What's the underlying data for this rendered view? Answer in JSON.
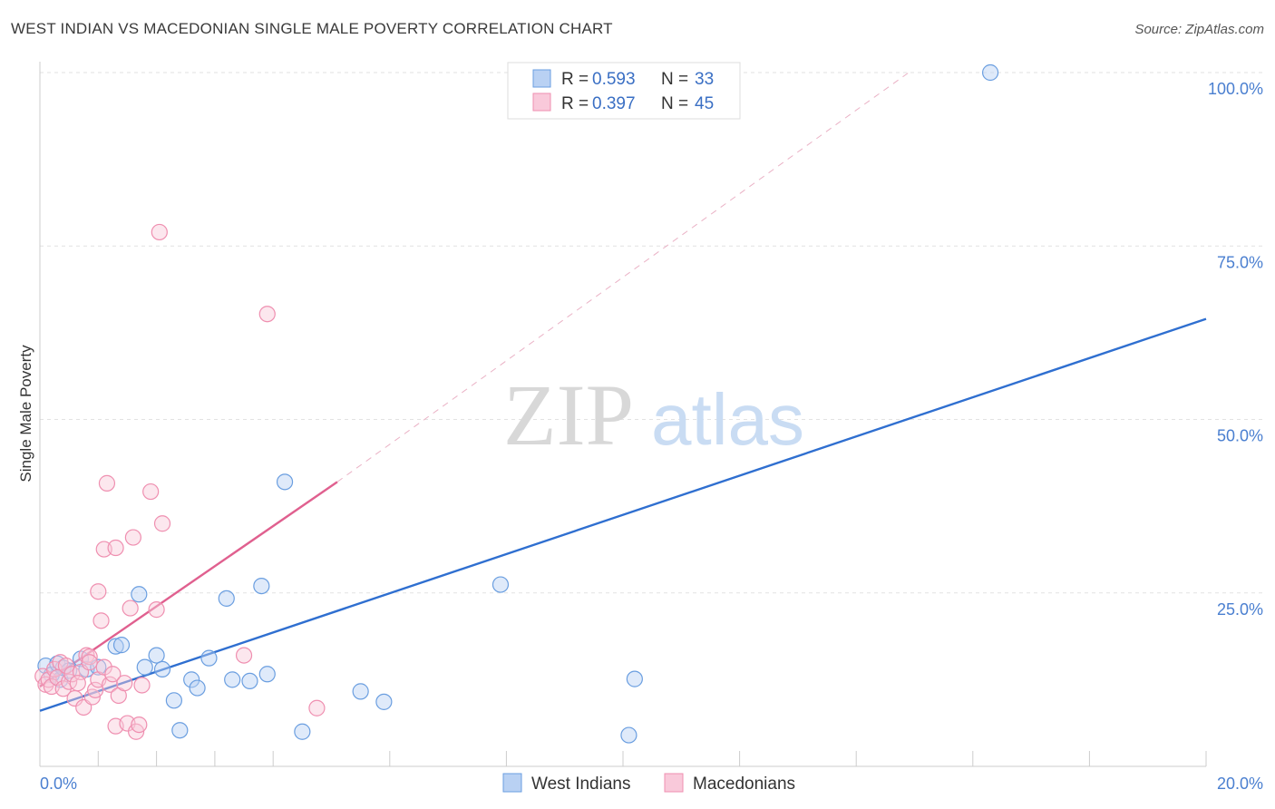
{
  "title": "WEST INDIAN VS MACEDONIAN SINGLE MALE POVERTY CORRELATION CHART",
  "source": "Source: ZipAtlas.com",
  "watermark": {
    "zip": "ZIP",
    "atlas": "atlas"
  },
  "colors": {
    "blue": "#6a9ee0",
    "blue_fill": "#b9d1f3",
    "blue_line": "#2f6fd0",
    "pink": "#ef8fb0",
    "pink_fill": "#f9c9da",
    "pink_line": "#e0608f",
    "axis_text": "#4a7fd0"
  },
  "legend": {
    "rows": [
      {
        "r_label": "R =",
        "r_value": "0.593",
        "n_label": "N =",
        "n_value": "33"
      },
      {
        "r_label": "R =",
        "r_value": "0.397",
        "n_label": "N =",
        "n_value": "45"
      }
    ]
  },
  "chart_data": {
    "type": "scatter",
    "title": "WEST INDIAN VS MACEDONIAN SINGLE MALE POVERTY CORRELATION CHART",
    "xlabel": "",
    "ylabel": "Single Male Poverty",
    "xlim": [
      0,
      20
    ],
    "ylim": [
      0,
      100
    ],
    "x_tick_labels": [
      "0.0%",
      "20.0%"
    ],
    "y_tick_labels": [
      "25.0%",
      "50.0%",
      "75.0%",
      "100.0%"
    ],
    "y_ticks": [
      25,
      50,
      75,
      100
    ],
    "series": [
      {
        "name": "West Indians",
        "points": [
          [
            0.1,
            14.5
          ],
          [
            0.2,
            13.2
          ],
          [
            0.3,
            14.8
          ],
          [
            0.35,
            12.5
          ],
          [
            0.4,
            14.2
          ],
          [
            0.5,
            13.8
          ],
          [
            0.7,
            15.5
          ],
          [
            0.8,
            14.0
          ],
          [
            1.0,
            14.3
          ],
          [
            1.3,
            17.3
          ],
          [
            1.4,
            17.5
          ],
          [
            1.7,
            24.8
          ],
          [
            1.8,
            14.3
          ],
          [
            2.0,
            16.0
          ],
          [
            2.1,
            14.0
          ],
          [
            2.3,
            9.5
          ],
          [
            2.4,
            5.2
          ],
          [
            2.6,
            12.5
          ],
          [
            2.7,
            11.3
          ],
          [
            2.9,
            15.6
          ],
          [
            3.2,
            24.2
          ],
          [
            3.3,
            12.5
          ],
          [
            3.6,
            12.3
          ],
          [
            3.8,
            26.0
          ],
          [
            3.9,
            13.3
          ],
          [
            4.2,
            41.0
          ],
          [
            4.5,
            5.0
          ],
          [
            5.5,
            10.8
          ],
          [
            5.9,
            9.3
          ],
          [
            7.9,
            26.2
          ],
          [
            10.1,
            4.5
          ],
          [
            10.2,
            12.6
          ],
          [
            16.3,
            100.0
          ]
        ]
      },
      {
        "name": "Macedonians",
        "points": [
          [
            0.05,
            13.0
          ],
          [
            0.1,
            11.8
          ],
          [
            0.15,
            12.5
          ],
          [
            0.2,
            11.5
          ],
          [
            0.25,
            14.0
          ],
          [
            0.3,
            12.8
          ],
          [
            0.35,
            15.0
          ],
          [
            0.4,
            11.2
          ],
          [
            0.45,
            14.5
          ],
          [
            0.5,
            12.2
          ],
          [
            0.55,
            13.3
          ],
          [
            0.6,
            9.8
          ],
          [
            0.7,
            13.6
          ],
          [
            0.75,
            8.5
          ],
          [
            0.8,
            16.0
          ],
          [
            0.85,
            15.8
          ],
          [
            0.9,
            10.0
          ],
          [
            0.95,
            11.0
          ],
          [
            1.0,
            12.5
          ],
          [
            1.1,
            14.3
          ],
          [
            1.2,
            11.8
          ],
          [
            1.0,
            25.2
          ],
          [
            1.05,
            21.0
          ],
          [
            1.1,
            31.3
          ],
          [
            1.15,
            40.8
          ],
          [
            1.25,
            13.3
          ],
          [
            1.3,
            5.8
          ],
          [
            1.3,
            31.5
          ],
          [
            1.35,
            10.2
          ],
          [
            1.45,
            12.0
          ],
          [
            1.5,
            6.2
          ],
          [
            1.55,
            22.8
          ],
          [
            1.6,
            33.0
          ],
          [
            1.65,
            5.0
          ],
          [
            1.7,
            6.0
          ],
          [
            1.9,
            39.6
          ],
          [
            2.0,
            22.6
          ],
          [
            2.1,
            35.0
          ],
          [
            2.05,
            77.0
          ],
          [
            3.5,
            16.0
          ],
          [
            3.9,
            65.2
          ],
          [
            4.75,
            8.4
          ],
          [
            1.75,
            11.7
          ],
          [
            0.65,
            12.0
          ],
          [
            0.85,
            15.0
          ]
        ]
      }
    ],
    "trendlines": [
      {
        "name": "West Indians",
        "from": [
          0,
          8.0
        ],
        "to": [
          20,
          64.5
        ],
        "style": "solid"
      },
      {
        "name": "Macedonians",
        "from": [
          0,
          11.5
        ],
        "to": [
          5.1,
          41.0
        ],
        "style": "solid"
      },
      {
        "name": "Macedonians extension",
        "from": [
          5.1,
          41.0
        ],
        "to": [
          14.9,
          100.0
        ],
        "style": "dashed"
      }
    ]
  }
}
